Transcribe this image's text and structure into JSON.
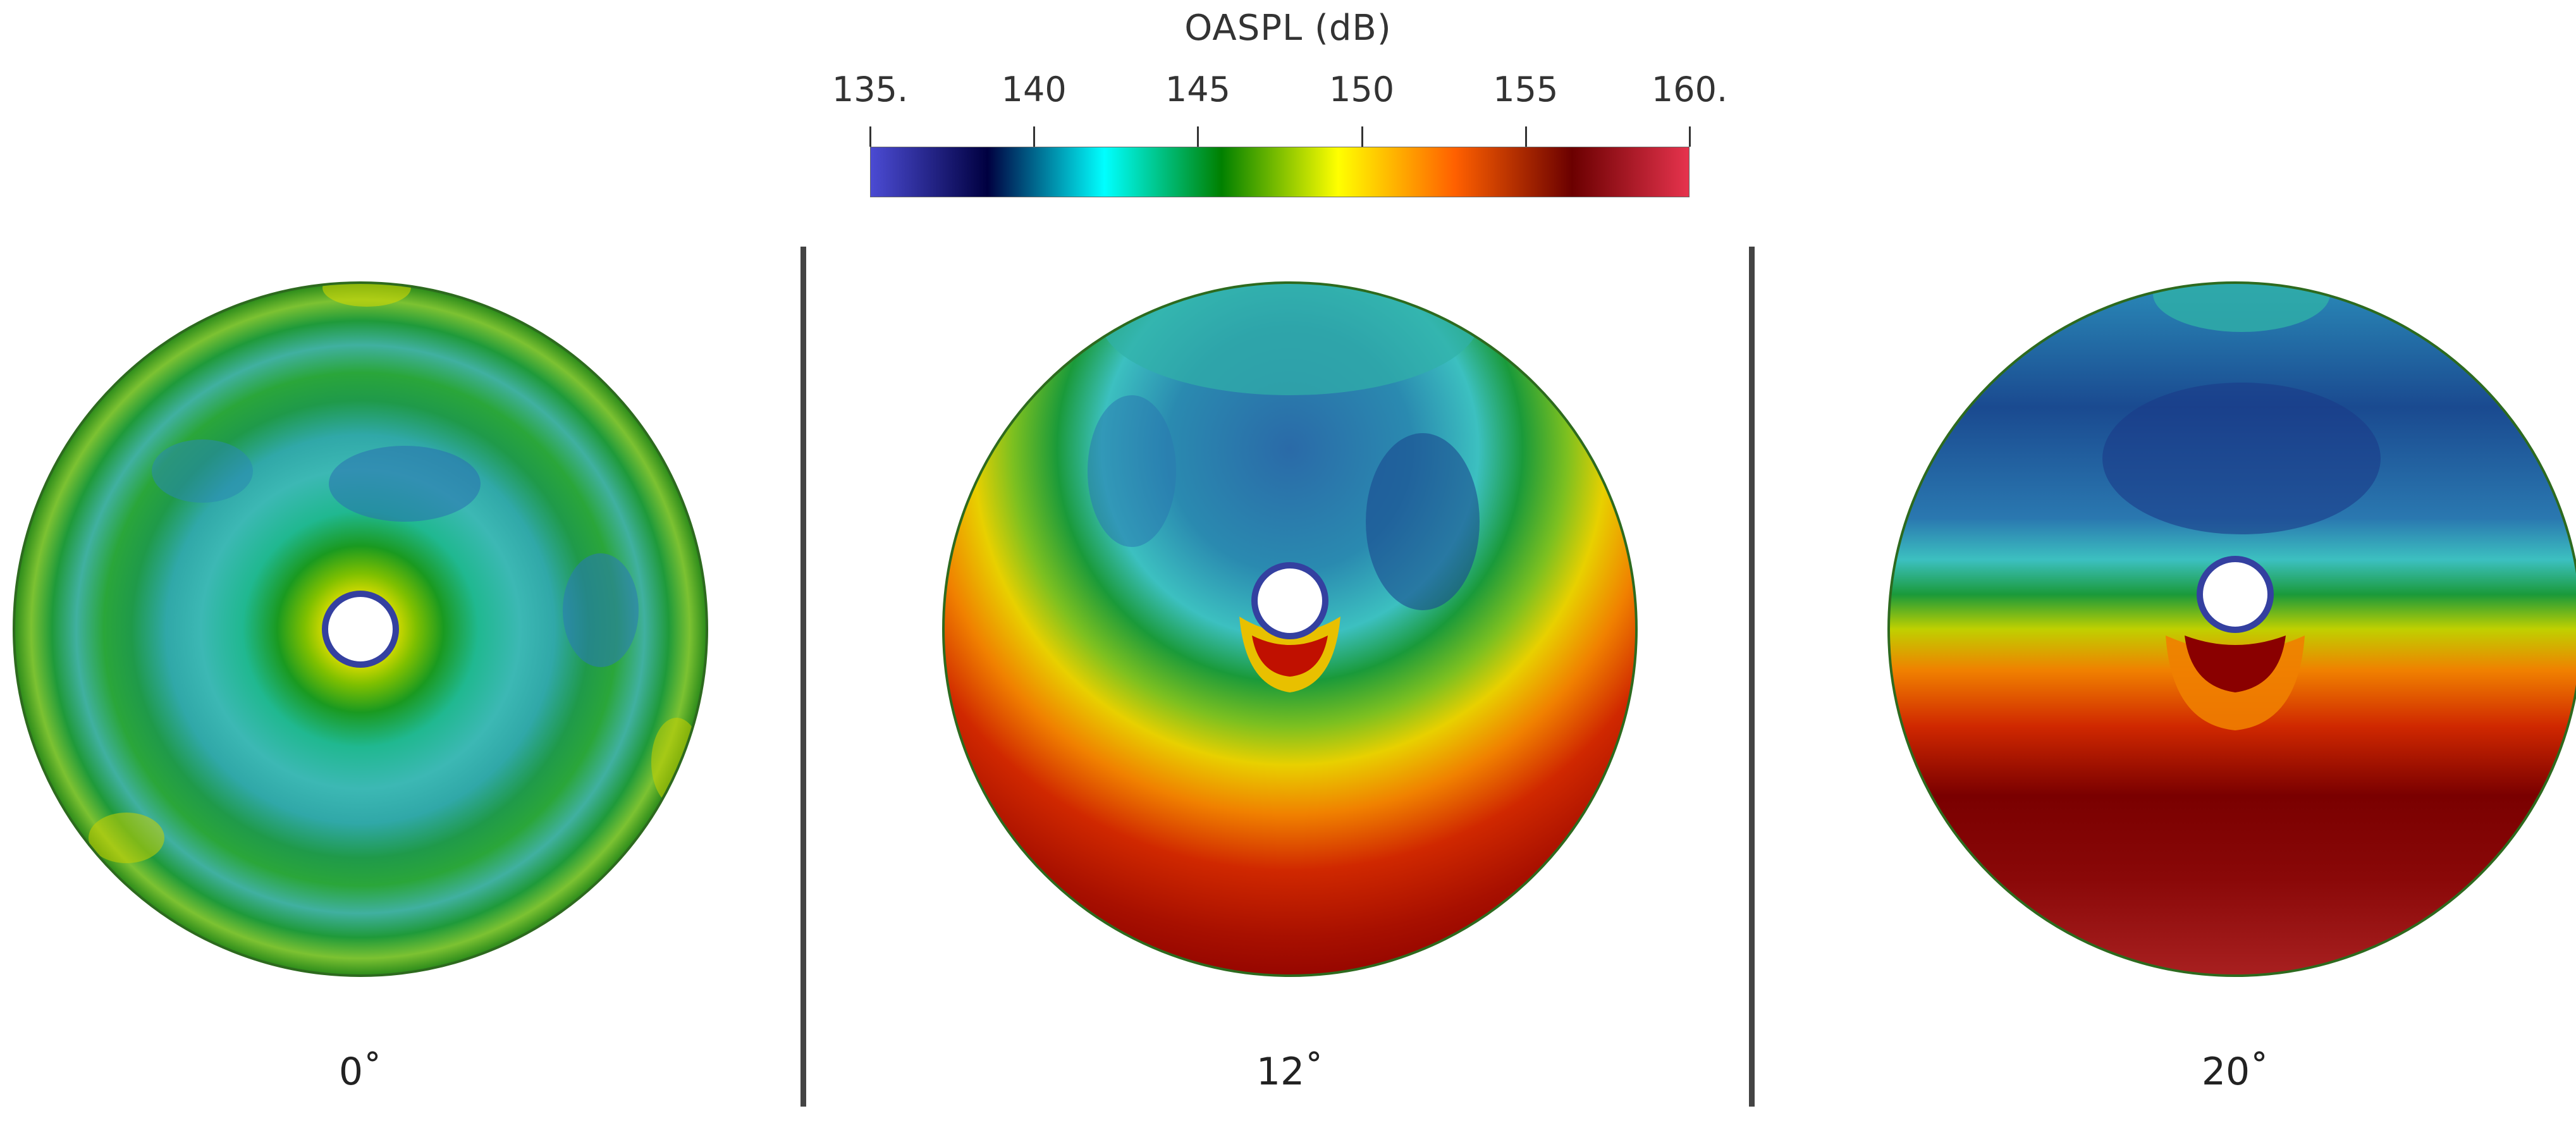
{
  "colorbar": {
    "title": "OASPL (dB)",
    "ticks": [
      "135.",
      "140",
      "145",
      "150",
      "155",
      "160."
    ],
    "colors": [
      "#4b4bd3",
      "#000040",
      "#00ffff",
      "#008000",
      "#ffff00",
      "#ff6000",
      "#6b0000",
      "#e6334d"
    ]
  },
  "panels": [
    {
      "label": "0˚"
    },
    {
      "label": "12˚"
    },
    {
      "label": "20˚"
    }
  ]
}
